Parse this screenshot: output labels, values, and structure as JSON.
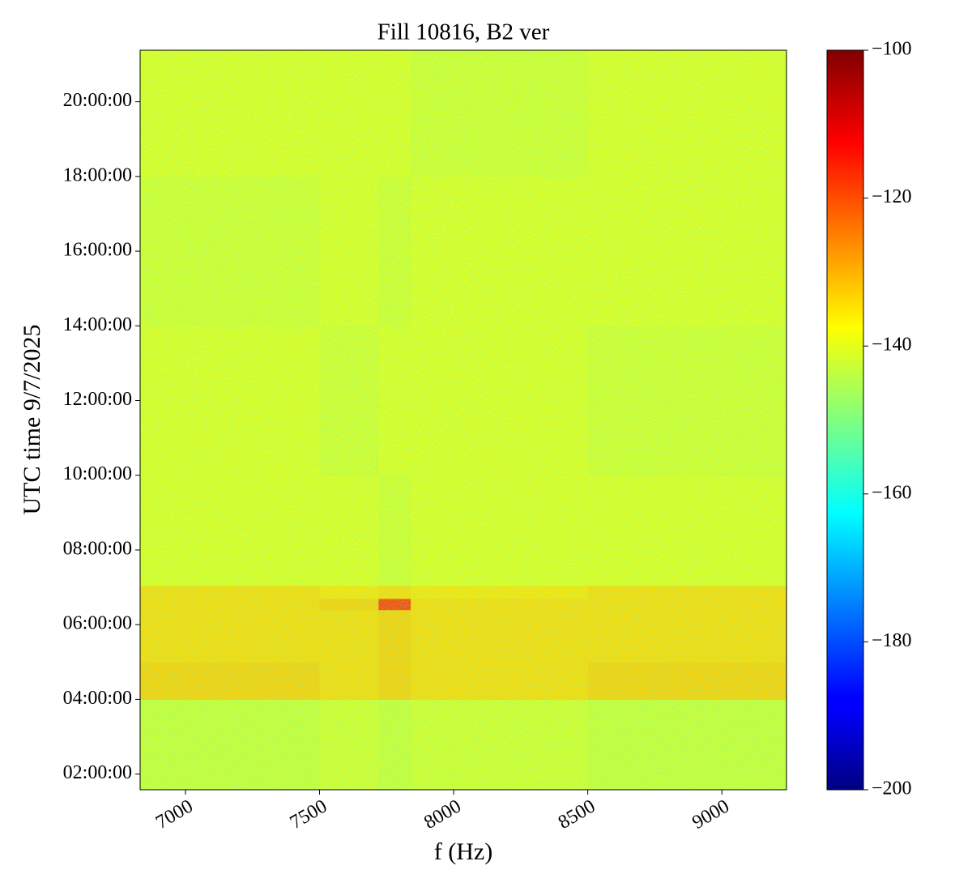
{
  "chart_data": {
    "type": "heatmap",
    "title": "Fill 10816, B2 ver",
    "xlabel": "f (Hz)",
    "ylabel": "UTC time 9/7/2025",
    "colormap": "jet",
    "x_edges": [
      6831,
      7500,
      7720,
      7840,
      8500,
      9241
    ],
    "y_edges": [
      1.58,
      4.0,
      5.0,
      6.4,
      6.7,
      7.05,
      10,
      14,
      18,
      21.38
    ],
    "z": [
      [
        -142,
        -141,
        -142,
        -141,
        -142
      ],
      [
        -133,
        -134,
        -133,
        -134,
        -133
      ],
      [
        -134,
        -134,
        -133,
        -134,
        -134
      ],
      [
        -134,
        -133,
        -120,
        -134,
        -134
      ],
      [
        -134,
        -135,
        -134,
        -135,
        -134
      ],
      [
        -140,
        -140,
        -141,
        -140,
        -140
      ],
      [
        -140,
        -141,
        -140,
        -140,
        -141
      ],
      [
        -141,
        -140,
        -141,
        -140,
        -140
      ],
      [
        -140,
        -140,
        -140,
        -141,
        -140
      ]
    ],
    "xlim": [
      6831,
      9241
    ],
    "ylim": [
      1.58,
      21.38
    ],
    "xticks": [
      7000,
      7500,
      8000,
      8500,
      9000
    ],
    "yticks": [
      {
        "value": 2,
        "label": "02:00:00"
      },
      {
        "value": 4,
        "label": "04:00:00"
      },
      {
        "value": 6,
        "label": "06:00:00"
      },
      {
        "value": 8,
        "label": "08:00:00"
      },
      {
        "value": 10,
        "label": "10:00:00"
      },
      {
        "value": 12,
        "label": "12:00:00"
      },
      {
        "value": 14,
        "label": "14:00:00"
      },
      {
        "value": 16,
        "label": "16:00:00"
      },
      {
        "value": 18,
        "label": "18:00:00"
      },
      {
        "value": 20,
        "label": "20:00:00"
      }
    ],
    "clim": [
      -200,
      -100
    ],
    "cticks": [
      {
        "value": -200,
        "label": "−200"
      },
      {
        "value": -180,
        "label": "−180"
      },
      {
        "value": -160,
        "label": "−160"
      },
      {
        "value": -140,
        "label": "−140"
      },
      {
        "value": -120,
        "label": "−120"
      },
      {
        "value": -100,
        "label": "−100"
      }
    ]
  }
}
